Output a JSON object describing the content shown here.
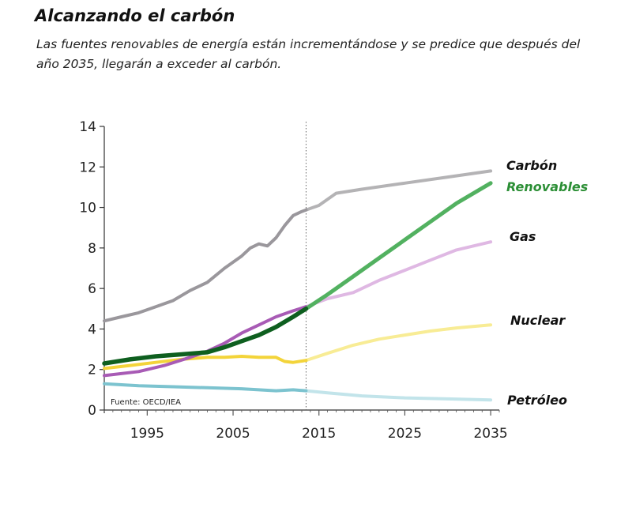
{
  "header": {
    "title": "Alcanzando el carbón",
    "subtitle": "Las fuentes renovables de energía están incrementándose y se predice que después del año 2035, llegarán a exceder al carbón."
  },
  "chart_data": {
    "type": "line",
    "title": "",
    "xlabel": "",
    "ylabel": "",
    "xlim": [
      1990,
      2036
    ],
    "ylim": [
      0,
      14
    ],
    "x_ticks": [
      1995,
      2005,
      2015,
      2025,
      2035
    ],
    "y_ticks": [
      0,
      2,
      4,
      6,
      8,
      10,
      12,
      14
    ],
    "projection_start": 2013.5,
    "grid": false,
    "source": "Fuente: OECD/IEA",
    "series": [
      {
        "name": "Carbón",
        "color": "#9a979c",
        "projection_color": "#b4b3b5",
        "points": [
          [
            1990,
            4.4
          ],
          [
            1992,
            4.6
          ],
          [
            1994,
            4.8
          ],
          [
            1996,
            5.1
          ],
          [
            1998,
            5.4
          ],
          [
            2000,
            5.9
          ],
          [
            2002,
            6.3
          ],
          [
            2004,
            7.0
          ],
          [
            2006,
            7.6
          ],
          [
            2007,
            8.0
          ],
          [
            2008,
            8.2
          ],
          [
            2009,
            8.1
          ],
          [
            2010,
            8.5
          ],
          [
            2011,
            9.1
          ],
          [
            2012,
            9.6
          ],
          [
            2013,
            9.8
          ],
          [
            2015,
            10.1
          ],
          [
            2017,
            10.7
          ],
          [
            2020,
            10.9
          ],
          [
            2025,
            11.2
          ],
          [
            2030,
            11.5
          ],
          [
            2035,
            11.8
          ]
        ]
      },
      {
        "name": "Renovables",
        "color": "#0e5f1f",
        "projection_color": "#52b160",
        "label_color": "#2c8f36",
        "points": [
          [
            1990,
            2.3
          ],
          [
            1993,
            2.5
          ],
          [
            1996,
            2.65
          ],
          [
            1999,
            2.75
          ],
          [
            2002,
            2.85
          ],
          [
            2004,
            3.1
          ],
          [
            2006,
            3.4
          ],
          [
            2008,
            3.7
          ],
          [
            2010,
            4.1
          ],
          [
            2012,
            4.6
          ],
          [
            2013.5,
            5.0
          ],
          [
            2016,
            5.7
          ],
          [
            2019,
            6.6
          ],
          [
            2022,
            7.5
          ],
          [
            2025,
            8.4
          ],
          [
            2028,
            9.3
          ],
          [
            2031,
            10.2
          ],
          [
            2035,
            11.2
          ]
        ]
      },
      {
        "name": "Gas",
        "color": "#a85bb5",
        "projection_color": "#dfb8e3",
        "points": [
          [
            1990,
            1.7
          ],
          [
            1994,
            1.9
          ],
          [
            1997,
            2.2
          ],
          [
            2000,
            2.6
          ],
          [
            2002,
            2.9
          ],
          [
            2004,
            3.3
          ],
          [
            2006,
            3.8
          ],
          [
            2008,
            4.2
          ],
          [
            2010,
            4.6
          ],
          [
            2012,
            4.9
          ],
          [
            2013.5,
            5.1
          ],
          [
            2016,
            5.5
          ],
          [
            2019,
            5.8
          ],
          [
            2022,
            6.4
          ],
          [
            2025,
            6.9
          ],
          [
            2028,
            7.4
          ],
          [
            2031,
            7.9
          ],
          [
            2035,
            8.3
          ]
        ]
      },
      {
        "name": "Nuclear",
        "color": "#f3d43a",
        "projection_color": "#f8ec95",
        "points": [
          [
            1990,
            2.05
          ],
          [
            1993,
            2.2
          ],
          [
            1996,
            2.35
          ],
          [
            1999,
            2.5
          ],
          [
            2002,
            2.6
          ],
          [
            2004,
            2.6
          ],
          [
            2006,
            2.65
          ],
          [
            2008,
            2.6
          ],
          [
            2010,
            2.6
          ],
          [
            2011,
            2.4
          ],
          [
            2012,
            2.35
          ],
          [
            2013.5,
            2.45
          ],
          [
            2016,
            2.8
          ],
          [
            2019,
            3.2
          ],
          [
            2022,
            3.5
          ],
          [
            2025,
            3.7
          ],
          [
            2028,
            3.9
          ],
          [
            2031,
            4.05
          ],
          [
            2035,
            4.2
          ]
        ]
      },
      {
        "name": "Petróleo",
        "color": "#7cc3cf",
        "projection_color": "#c2e4ea",
        "points": [
          [
            1990,
            1.3
          ],
          [
            1994,
            1.2
          ],
          [
            1998,
            1.15
          ],
          [
            2002,
            1.1
          ],
          [
            2006,
            1.05
          ],
          [
            2008,
            1.0
          ],
          [
            2010,
            0.95
          ],
          [
            2012,
            1.0
          ],
          [
            2013.5,
            0.95
          ],
          [
            2016,
            0.85
          ],
          [
            2020,
            0.7
          ],
          [
            2025,
            0.6
          ],
          [
            2030,
            0.55
          ],
          [
            2035,
            0.5
          ]
        ]
      }
    ]
  }
}
